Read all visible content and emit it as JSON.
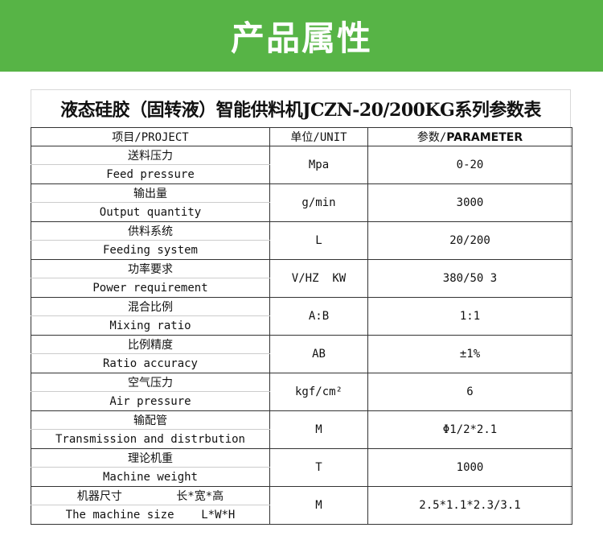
{
  "banner": {
    "title": "产品属性",
    "color": "#57b446"
  },
  "table": {
    "title": "液态硅胶（固转液）智能供料机JCZN-20/200KG系列参数表",
    "headers": {
      "project": "项目/PROJECT",
      "unit": "单位/UNIT",
      "param_prefix": "参数/",
      "param_bold": "PARAMETER"
    },
    "rows": [
      {
        "zh": "送料压力",
        "en": "Feed pressure",
        "unit": "Mpa",
        "value": "0-20"
      },
      {
        "zh": "输出量",
        "en": "Output quantity",
        "unit": "g/min",
        "value": "3000"
      },
      {
        "zh": "供料系统",
        "en": "Feeding system",
        "unit": "L",
        "value": "20/200"
      },
      {
        "zh": "功率要求",
        "en": "Power requirement",
        "unit": "V/HZ  KW",
        "value": "380/50  3"
      },
      {
        "zh": "混合比例",
        "en": "Mixing ratio",
        "unit": "A:B",
        "value": "1:1"
      },
      {
        "zh": "比例精度",
        "en": "Ratio accuracy",
        "unit": "AB",
        "value": "±1%"
      },
      {
        "zh": "空气压力",
        "en": "Air pressure",
        "unit": "kgf/cm²",
        "value": "6"
      },
      {
        "zh": "输配管",
        "en": "Transmission and distrbution",
        "unit": "M",
        "value": "Φ1/2*2.1"
      },
      {
        "zh": "理论机重",
        "en": "Machine weight",
        "unit": "T",
        "value": "1000"
      },
      {
        "zh": "机器尺寸        长*宽*高",
        "en": "The machine size    L*W*H",
        "unit": "M",
        "value": "2.5*1.1*2.3/3.1"
      }
    ]
  }
}
